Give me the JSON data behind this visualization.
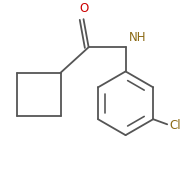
{
  "background_color": "#ffffff",
  "bond_color": "#555555",
  "atom_colors": {
    "O": "#cc0000",
    "N": "#8B6914",
    "Cl": "#8B6914",
    "C": "#000000"
  },
  "line_width": 1.3,
  "font_size_atoms": 8.5,
  "figure_size": [
    1.9,
    1.87
  ],
  "dpi": 100
}
